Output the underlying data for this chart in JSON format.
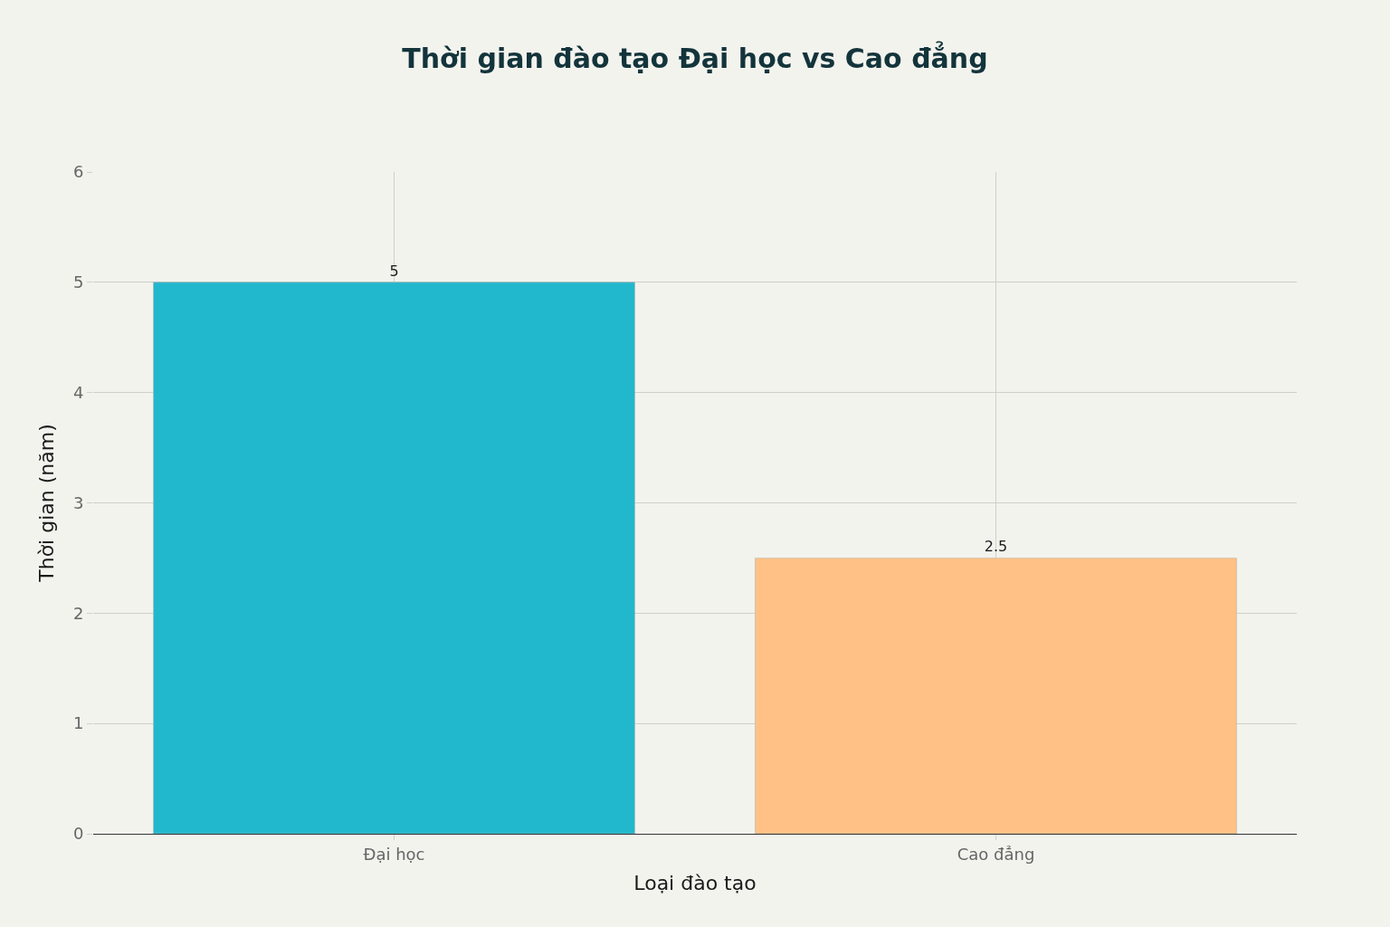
{
  "chart_data": {
    "type": "bar",
    "title": "Thời gian đào tạo Đại học vs Cao đẳng",
    "xlabel": "Loại đào tạo",
    "ylabel": "Thời gian (năm)",
    "categories": [
      "Đại học",
      "Cao đẳng"
    ],
    "values": [
      5,
      2.5
    ],
    "colors": [
      "#21b8cd",
      "#ffc185"
    ],
    "ylim": [
      0,
      6
    ],
    "yticks": [
      0,
      1,
      2,
      3,
      4,
      5,
      6
    ],
    "grid": true,
    "data_labels": true
  }
}
